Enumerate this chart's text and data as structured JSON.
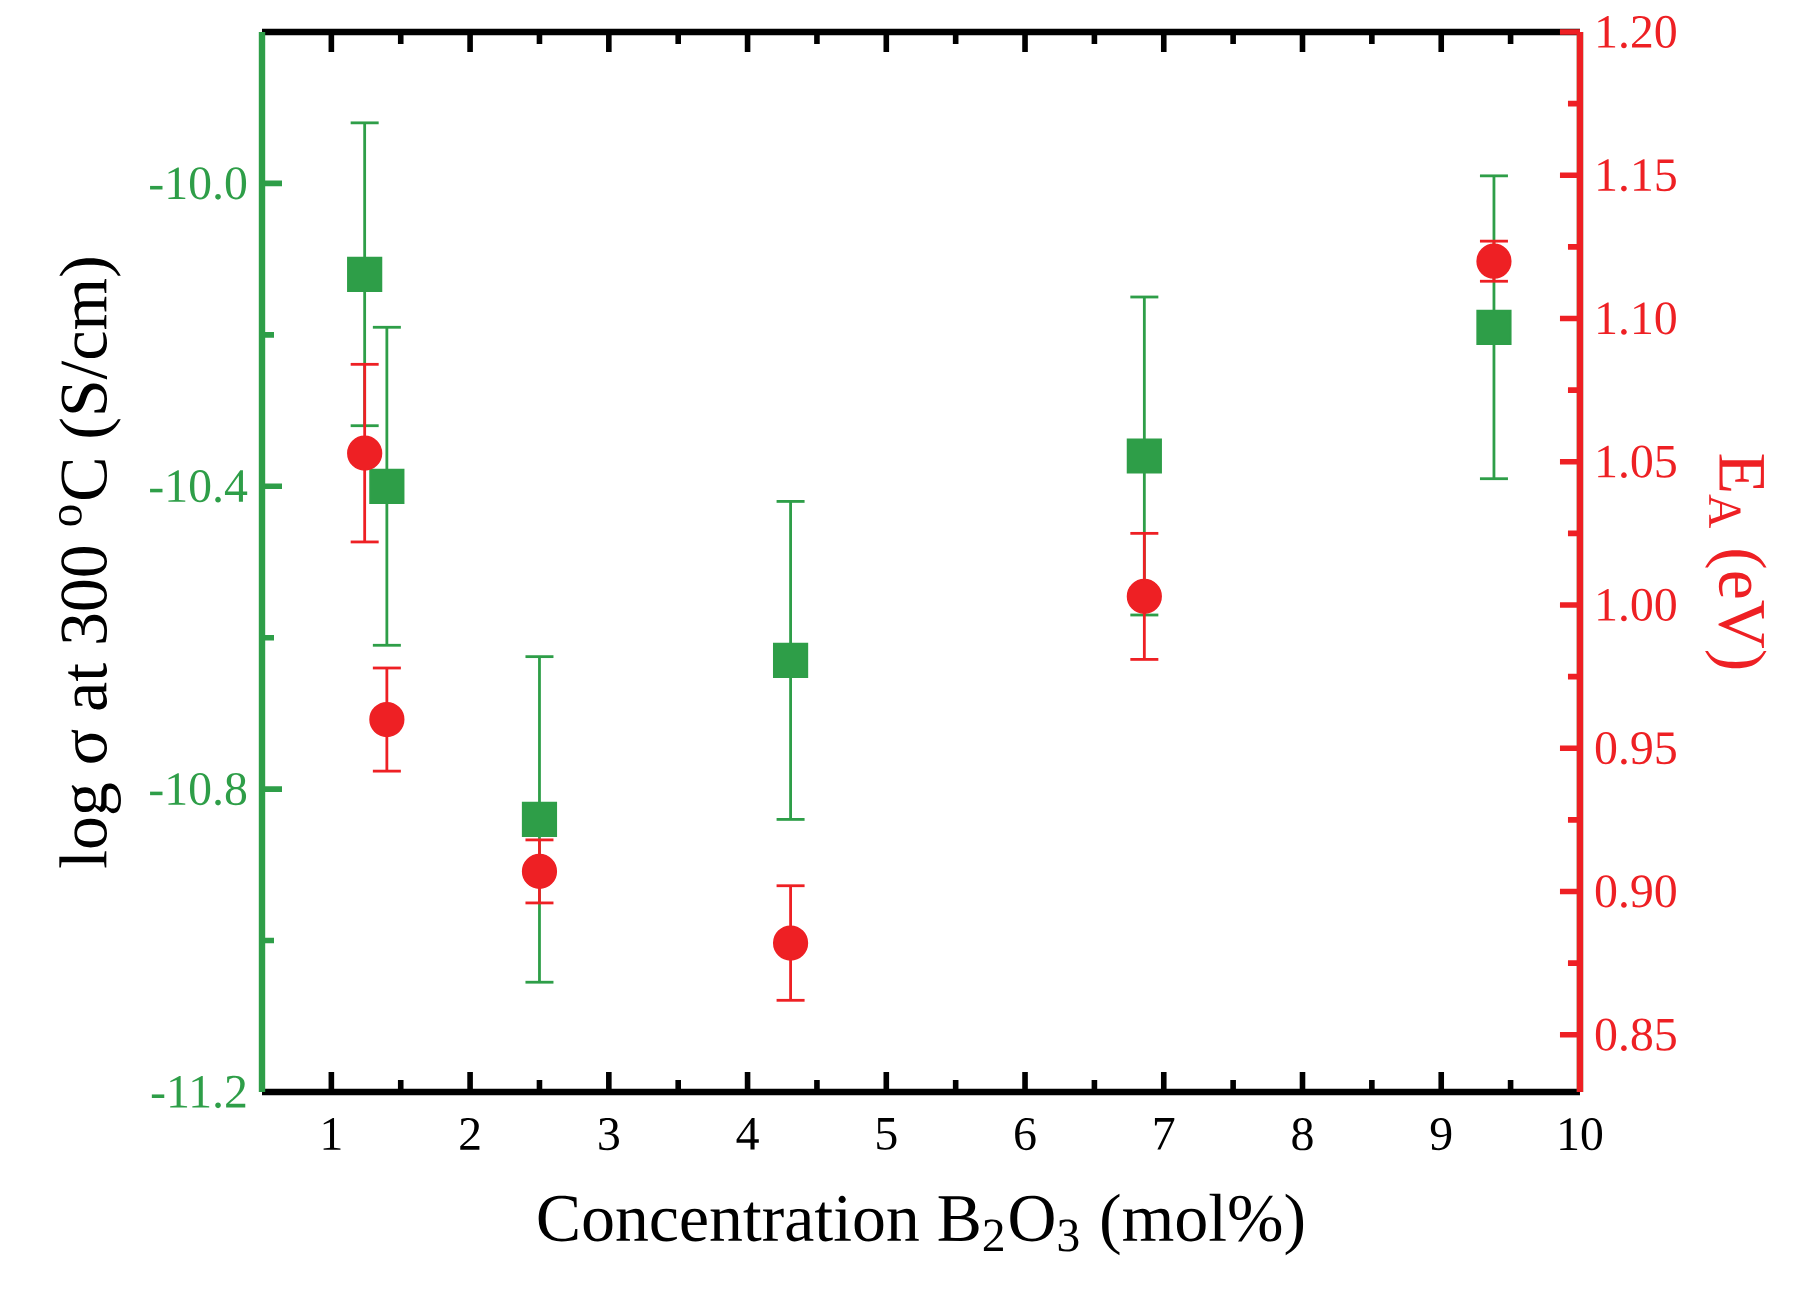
{
  "chart_data": {
    "type": "scatter",
    "xlabel": "Concentration B$_{2}$O$_{3}$ (mol%)",
    "ylabel": "log σ at 300 $^{o}$C (S/cm)",
    "y2label": "E$_{A}$ (eV)",
    "xlim": [
      0.5,
      10
    ],
    "xticks": [
      1,
      {
        "value": 1.5,
        "label": null
      },
      2,
      {
        "value": 2.5,
        "label": null
      },
      3,
      {
        "value": 3.5,
        "label": null
      },
      4,
      {
        "value": 4.5,
        "label": null
      },
      5,
      {
        "value": 5.5,
        "label": null
      },
      6,
      {
        "value": 6.5,
        "label": null
      },
      7,
      {
        "value": 7.5,
        "label": null
      },
      8,
      {
        "value": 8.5,
        "label": null
      },
      9,
      {
        "value": 9.5,
        "label": null
      },
      10
    ],
    "ylim": [
      -11.2,
      -9.8
    ],
    "yticks": [
      {
        "value": -11.2,
        "label": "-11.2"
      },
      {
        "value": -11.0,
        "label": null
      },
      {
        "value": -10.8,
        "label": "-10.8"
      },
      {
        "value": -10.6,
        "label": null
      },
      {
        "value": -10.4,
        "label": "-10.4"
      },
      {
        "value": -10.2,
        "label": null
      },
      {
        "value": -10.0,
        "label": "-10.0"
      }
    ],
    "y2lim": [
      0.83,
      1.2
    ],
    "y2ticks": [
      {
        "value": 0.85,
        "label": "0.85"
      },
      {
        "value": 0.875,
        "label": null
      },
      {
        "value": 0.9,
        "label": "0.90"
      },
      {
        "value": 0.925,
        "label": null
      },
      {
        "value": 0.95,
        "label": "0.95"
      },
      {
        "value": 0.975,
        "label": null
      },
      {
        "value": 1.0,
        "label": "1.00"
      },
      {
        "value": 1.025,
        "label": null
      },
      {
        "value": 1.05,
        "label": "1.05"
      },
      {
        "value": 1.075,
        "label": null
      },
      {
        "value": 1.1,
        "label": "1.10"
      },
      {
        "value": 1.125,
        "label": null
      },
      {
        "value": 1.15,
        "label": "1.15"
      },
      {
        "value": 1.175,
        "label": null
      },
      {
        "value": 1.2,
        "label": "1.20"
      }
    ],
    "series": [
      {
        "color": "#2e9e48",
        "marker": "square",
        "x": [
          1.24,
          1.4,
          2.5,
          4.31,
          6.86,
          9.38
        ],
        "values": [
          -10.12,
          -10.4,
          -10.84,
          -10.63,
          -10.36,
          -10.19
        ],
        "errors": [
          0.2,
          0.21,
          0.215,
          0.21,
          0.21,
          0.2
        ]
      },
      {
        "color": "#ee2024",
        "marker": "circle",
        "axis": "y2",
        "x": [
          1.24,
          1.4,
          2.5,
          4.31,
          6.86,
          9.38
        ],
        "values": [
          1.053,
          0.96,
          0.907,
          0.882,
          1.003,
          1.12
        ],
        "errors": [
          0.031,
          0.018,
          0.011,
          0.02,
          0.022,
          0.007
        ]
      }
    ]
  }
}
